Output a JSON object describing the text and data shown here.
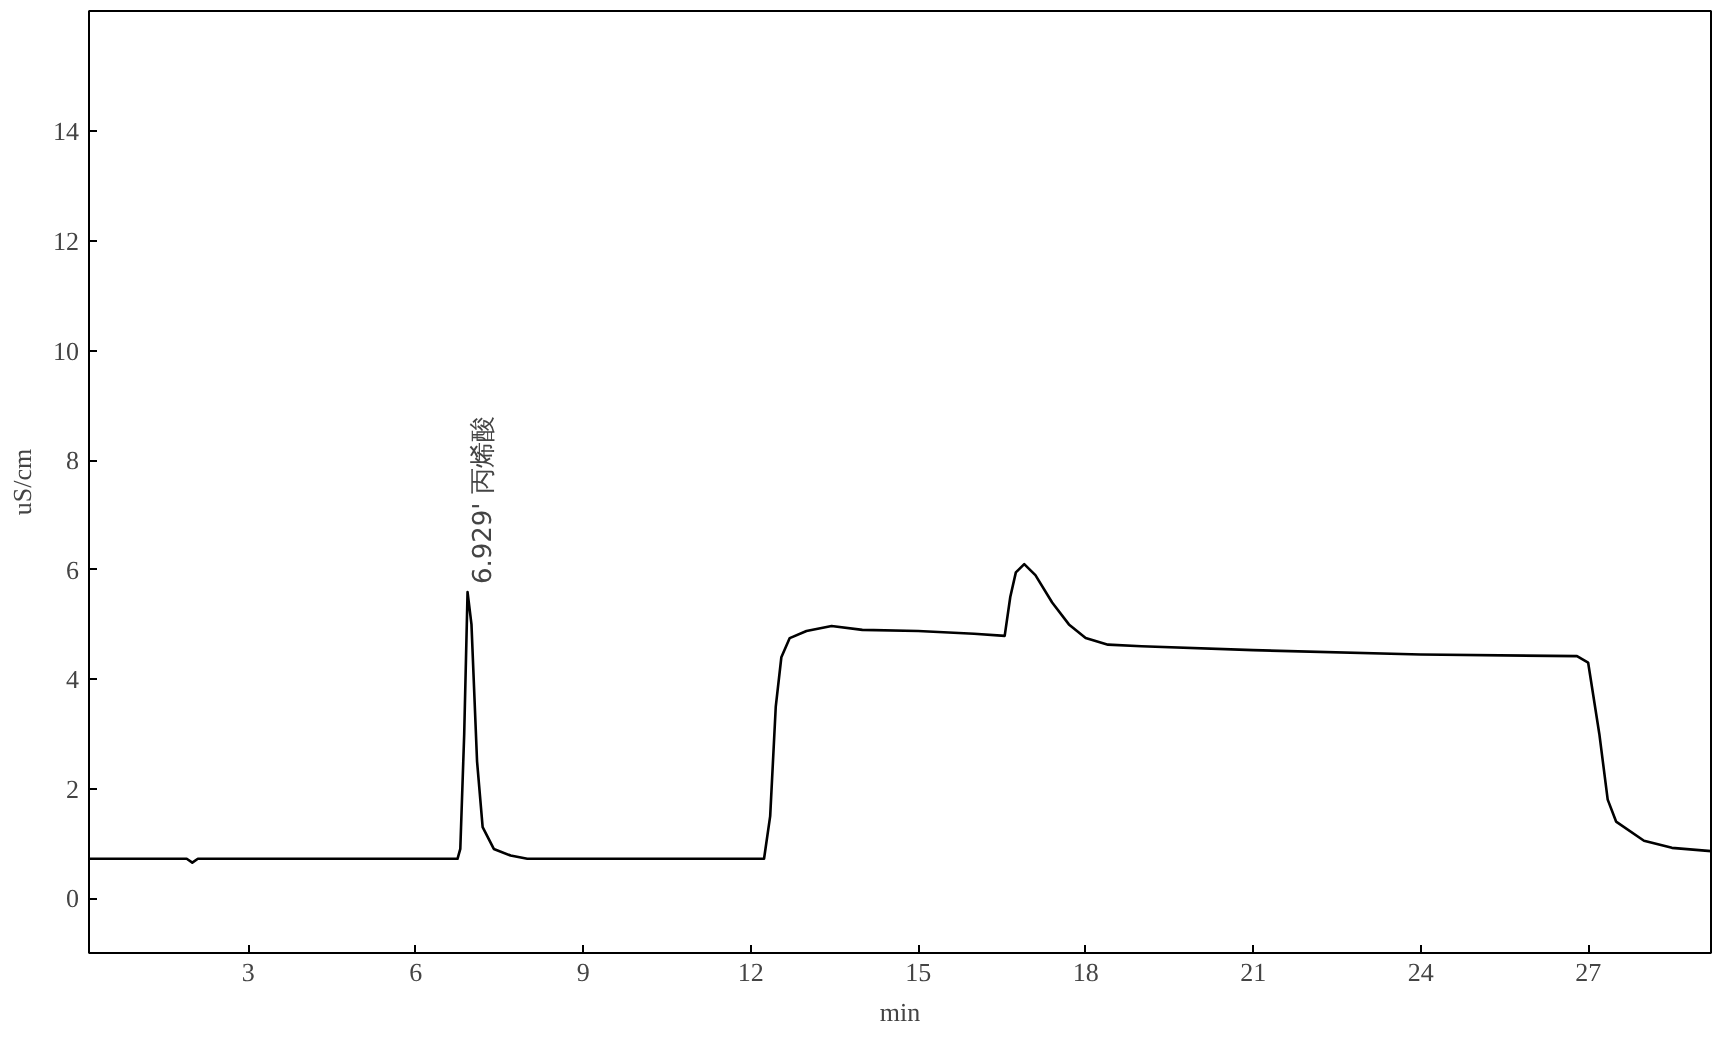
{
  "chart_data": {
    "type": "line",
    "xlabel": "min",
    "ylabel": "uS/cm",
    "x": [
      0.15,
      1.9,
      2.0,
      2.1,
      6.75,
      6.8,
      6.87,
      6.93,
      7.0,
      7.1,
      7.2,
      7.4,
      7.7,
      8.0,
      12.24,
      12.35,
      12.45,
      12.55,
      12.7,
      13.0,
      13.45,
      14.0,
      15.0,
      16.0,
      16.55,
      16.65,
      16.75,
      16.9,
      17.1,
      17.4,
      17.7,
      18.0,
      18.4,
      19.0,
      21.0,
      24.0,
      26.8,
      27.0,
      27.2,
      27.35,
      27.5,
      28.0,
      28.5,
      29.2
    ],
    "values": [
      0.72,
      0.72,
      0.65,
      0.72,
      0.72,
      0.9,
      3.0,
      5.59,
      5.0,
      2.5,
      1.3,
      0.9,
      0.78,
      0.72,
      0.72,
      1.5,
      3.5,
      4.4,
      4.75,
      4.88,
      4.97,
      4.9,
      4.88,
      4.83,
      4.79,
      5.5,
      5.95,
      6.1,
      5.9,
      5.4,
      5.0,
      4.75,
      4.63,
      4.6,
      4.53,
      4.45,
      4.42,
      4.3,
      3.0,
      1.8,
      1.4,
      1.05,
      0.92,
      0.86
    ],
    "color": "#000000",
    "xlim": [
      0.15,
      29.2
    ],
    "ylim": [
      -1.0,
      16.2
    ],
    "xticks": [
      3,
      6,
      9,
      12,
      15,
      18,
      21,
      24,
      27
    ],
    "yticks": [
      0,
      2,
      4,
      6,
      8,
      10,
      12,
      14
    ],
    "grid": false,
    "annotations": [
      {
        "text": "6.929' 丙烯酸",
        "x": 6.929,
        "y": 5.59
      }
    ]
  }
}
